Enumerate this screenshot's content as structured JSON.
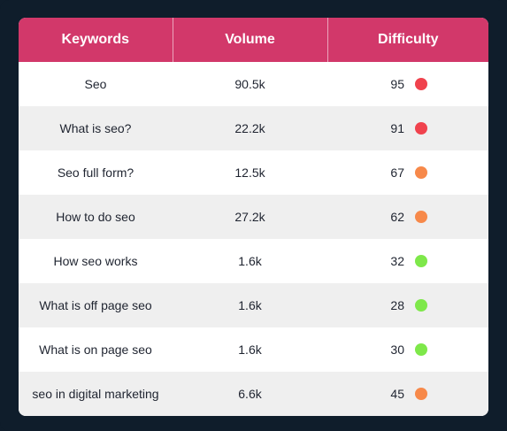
{
  "table": {
    "headers": [
      "Keywords",
      "Volume",
      "Difficulty"
    ],
    "rows": [
      {
        "keyword": "Seo",
        "volume": "90.5k",
        "difficulty": "95",
        "level": "high"
      },
      {
        "keyword": "What is seo?",
        "volume": "22.2k",
        "difficulty": "91",
        "level": "high"
      },
      {
        "keyword": "Seo full form?",
        "volume": "12.5k",
        "difficulty": "67",
        "level": "medium"
      },
      {
        "keyword": "How to do seo",
        "volume": "27.2k",
        "difficulty": "62",
        "level": "medium"
      },
      {
        "keyword": "How seo works",
        "volume": "1.6k",
        "difficulty": "32",
        "level": "low"
      },
      {
        "keyword": "What is off page seo",
        "volume": "1.6k",
        "difficulty": "28",
        "level": "low"
      },
      {
        "keyword": "What is on page seo",
        "volume": "1.6k",
        "difficulty": "30",
        "level": "low"
      },
      {
        "keyword": "seo in digital marketing",
        "volume": "6.6k",
        "difficulty": "45",
        "level": "medium"
      }
    ]
  },
  "colors": {
    "header_bg": "#d2386a",
    "high": "#f0424d",
    "medium": "#f7894a",
    "low": "#7ee84a",
    "frame_bg": "#0f1d2b"
  }
}
